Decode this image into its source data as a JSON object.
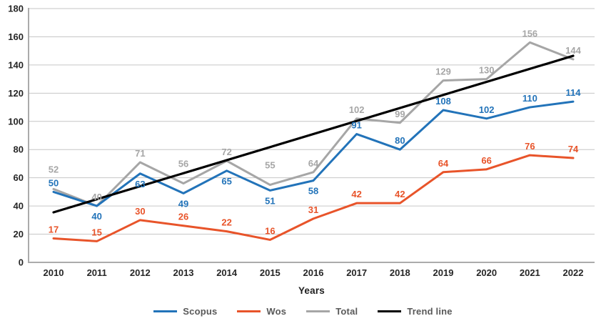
{
  "chart_data": {
    "type": "line",
    "title": "",
    "xlabel": "Years",
    "ylabel": "",
    "ylim": [
      0,
      180
    ],
    "yticks": [
      0,
      20,
      40,
      60,
      80,
      100,
      120,
      140,
      160,
      180
    ],
    "grid": true,
    "legend_position": "bottom",
    "categories": [
      "2010",
      "2011",
      "2012",
      "2013",
      "2014",
      "2015",
      "2016",
      "2017",
      "2018",
      "2019",
      "2020",
      "2021",
      "2022"
    ],
    "series": [
      {
        "name": "Scopus",
        "color": "#2273B9",
        "values": [
          50,
          40,
          63,
          49,
          65,
          51,
          58,
          91,
          80,
          108,
          102,
          110,
          114
        ],
        "label_positions": [
          "above",
          "below",
          "below",
          "below",
          "below",
          "below",
          "below",
          "above",
          "above",
          "above",
          "above",
          "above",
          "above"
        ]
      },
      {
        "name": "Wos",
        "color": "#E8542A",
        "values": [
          17,
          15,
          30,
          26,
          22,
          16,
          31,
          42,
          42,
          64,
          66,
          76,
          74
        ],
        "label_positions": [
          "above",
          "above",
          "above",
          "above",
          "above",
          "above",
          "above",
          "above",
          "above",
          "above",
          "above",
          "above",
          "above"
        ]
      },
      {
        "name": "Total",
        "color": "#A6A6A6",
        "values": [
          52,
          40,
          71,
          56,
          72,
          55,
          64,
          102,
          99,
          129,
          130,
          156,
          144
        ],
        "label_positions": [
          "high",
          "above",
          "above",
          "high",
          "above",
          "high",
          "above",
          "above",
          "above",
          "above",
          "above",
          "above",
          "above"
        ]
      },
      {
        "name": "Trend line",
        "color": "#000000",
        "style": "trend",
        "y_start": 35.5,
        "y_end": 146.5
      }
    ],
    "colors": {
      "gridline": "#C6C6C6",
      "axis": "#ABABAB",
      "tick_text": "#262626",
      "legend_text": "#595959",
      "background": "#FFFFFF"
    }
  }
}
